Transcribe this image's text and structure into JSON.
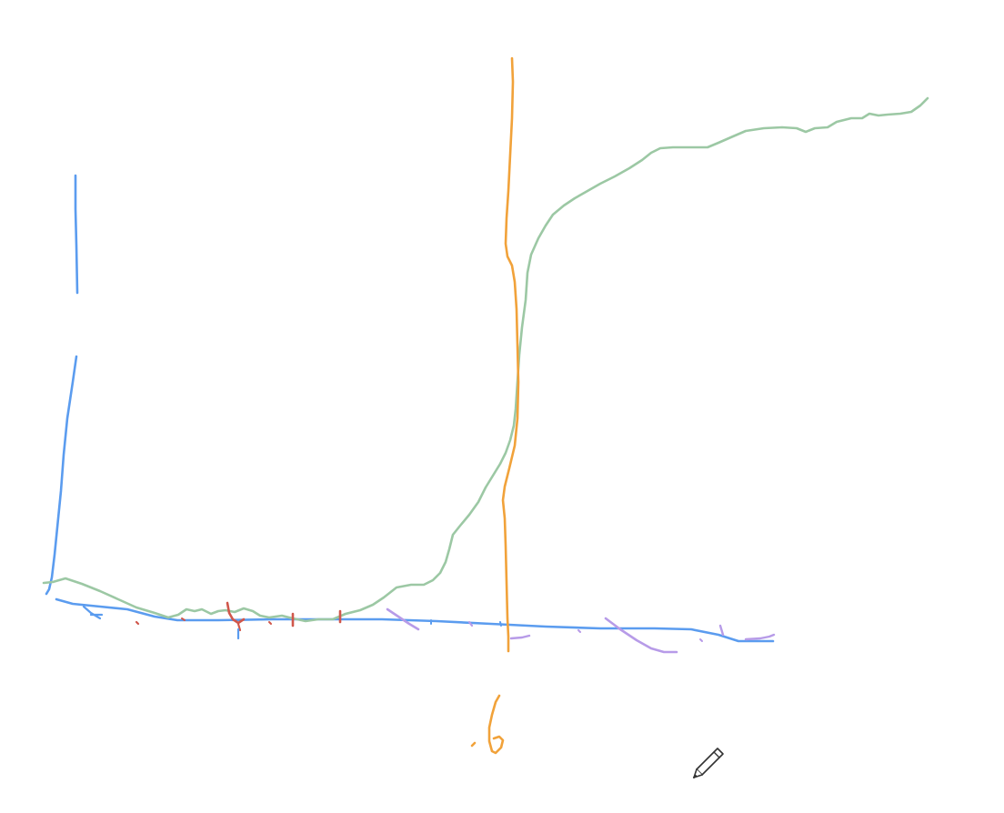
{
  "canvas": {
    "background": "#ffffff"
  },
  "colors": {
    "axis_blue": "#5b9cef",
    "curve_green": "#9cc8a4",
    "marker_orange": "#f1a23a",
    "ticks_red": "#d0574b",
    "ticks_purple": "#b79be8",
    "cursor": "#333333"
  },
  "annotations": {
    "orange_label": ".6"
  },
  "cursor": {
    "icon": "pencil-icon"
  }
}
